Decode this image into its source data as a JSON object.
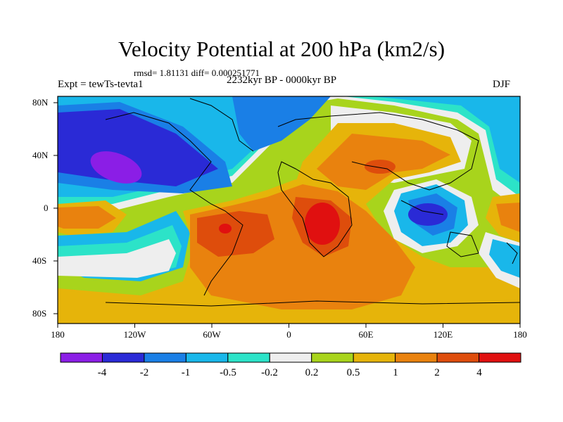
{
  "title": "Velocity Potential at 200 hPa (km2/s)",
  "stats": "rmsd= 1.81131 diff= 0.000251771",
  "left_label": "Expt = tewTs-tevta1",
  "center_label": "2232kyr BP - 0000kyr BP",
  "right_label": "DJF",
  "x_ticks": [
    "180",
    "120W",
    "60W",
    "0",
    "60E",
    "120E",
    "180"
  ],
  "y_ticks": [
    "80N",
    "40N",
    "0",
    "40S",
    "80S"
  ],
  "colorbar": {
    "labels": [
      "-4",
      "-2",
      "-1",
      "-0.5",
      "-0.2",
      "0.2",
      "0.5",
      "1",
      "2",
      "4"
    ],
    "colors": [
      "#8b1ee6",
      "#2a2ad6",
      "#1a7fe6",
      "#19b7ea",
      "#2ce3c8",
      "#eeeeee",
      "#a8d41c",
      "#e6b40a",
      "#e9820e",
      "#de4d0c",
      "#e01010"
    ]
  }
}
